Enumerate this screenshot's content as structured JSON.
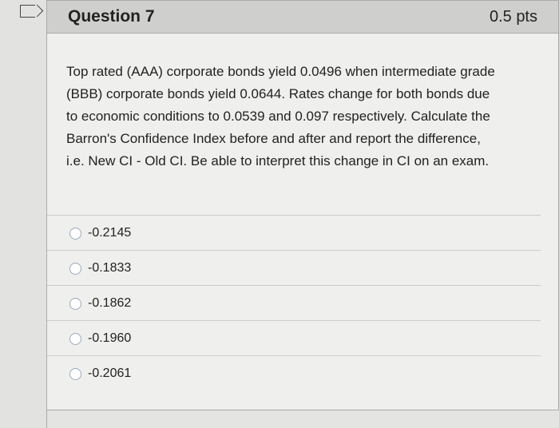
{
  "question": {
    "title": "Question 7",
    "points": "0.5 pts",
    "text": "Top rated (AAA) corporate bonds yield 0.0496 when intermediate grade (BBB) corporate bonds yield 0.0644. Rates change for both bonds due to economic conditions to 0.0539 and 0.097 respectively. Calculate the Barron's Confidence Index before and after and report the difference, i.e. New CI - Old CI. Be able to interpret this change in CI on an exam.",
    "options": [
      "-0.2145",
      "-0.1833",
      "-0.1862",
      "-0.1960",
      "-0.2061"
    ]
  }
}
